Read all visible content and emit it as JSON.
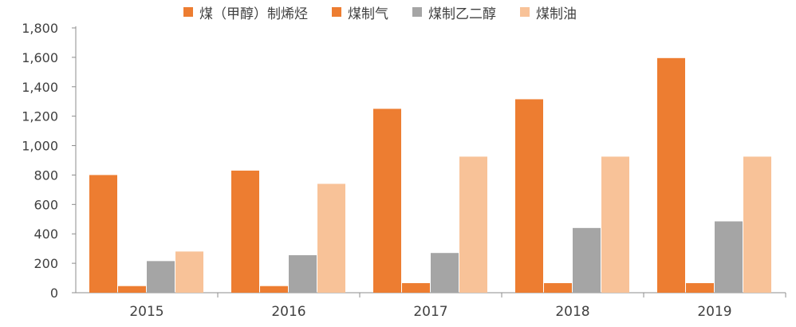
{
  "chart_data": {
    "type": "bar",
    "categories": [
      "2015",
      "2016",
      "2017",
      "2018",
      "2019"
    ],
    "series": [
      {
        "name": "煤（甲醇）制烯烃",
        "color": "#ED7D31",
        "values": [
          800,
          830,
          1250,
          1315,
          1595
        ]
      },
      {
        "name": "煤制气",
        "color": "#ED7D31",
        "values": [
          45,
          45,
          65,
          65,
          65
        ]
      },
      {
        "name": "煤制乙二醇",
        "color": "#A5A5A5",
        "values": [
          215,
          255,
          270,
          440,
          485
        ]
      },
      {
        "name": "煤制油",
        "color": "#F8C298",
        "values": [
          280,
          740,
          925,
          925,
          925
        ]
      }
    ],
    "ylim": [
      0,
      1800
    ],
    "yticks": [
      "0",
      "200",
      "400",
      "600",
      "800",
      "1,000",
      "1,200",
      "1,400",
      "1,600",
      "1,800"
    ],
    "ytick_values": [
      0,
      200,
      400,
      600,
      800,
      1000,
      1200,
      1400,
      1600,
      1800
    ],
    "grid": false,
    "legend_position": "top"
  }
}
